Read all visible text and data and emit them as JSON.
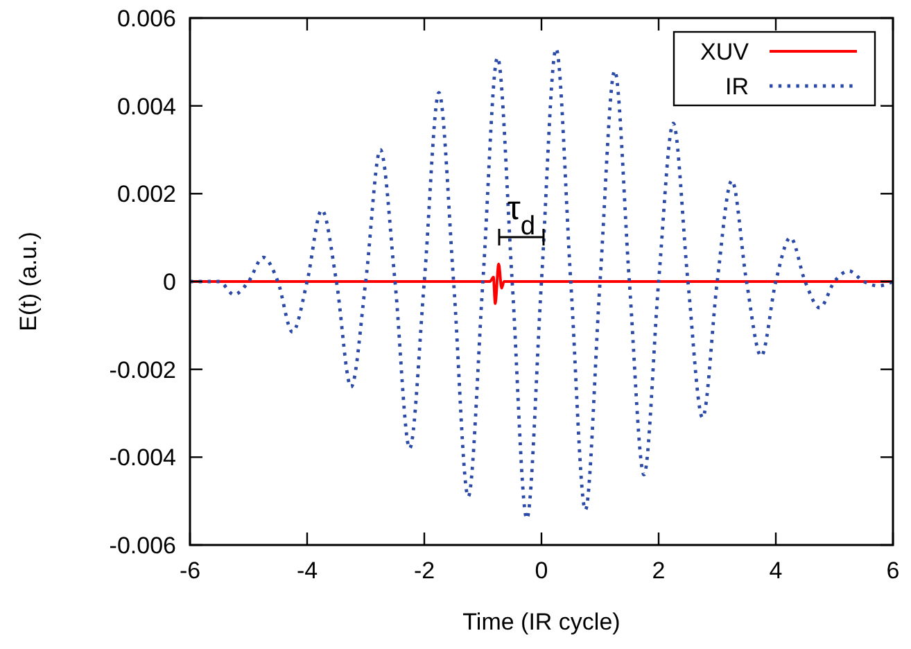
{
  "chart_data": {
    "type": "line",
    "xlabel": "Time (IR cycle)",
    "ylabel": "E(t) (a.u.)",
    "xlim": [
      -6,
      6
    ],
    "ylim": [
      -0.006,
      0.006
    ],
    "xticks": [
      -6,
      -4,
      -2,
      0,
      2,
      4,
      6
    ],
    "yticks": [
      -0.006,
      -0.004,
      -0.002,
      0,
      0.002,
      0.004,
      0.006
    ],
    "grid": false,
    "legend": "top right",
    "marker": "none",
    "annotations": [
      "τ$_{d}$"
    ],
    "series": [
      {
        "name": "XUV",
        "color": "#ff0000",
        "line_style": "solid",
        "x": [
          -6,
          -0.88,
          -0.82,
          -0.79,
          -0.73,
          -0.68,
          -0.64,
          6
        ],
        "values": [
          0,
          0,
          0.0001,
          -0.0005,
          0.0004,
          -0.00015,
          0,
          0
        ]
      },
      {
        "name": "IR",
        "color": "#2b4aa8",
        "line_style": "dotted",
        "x": [
          -6,
          -5.75,
          -5.5,
          -5.25,
          -5,
          -4.75,
          -4.5,
          -4.25,
          -4,
          -3.75,
          -3.5,
          -3.25,
          -3,
          -2.75,
          -2.5,
          -2.25,
          -2,
          -1.75,
          -1.5,
          -1.25,
          -1,
          -0.75,
          -0.5,
          -0.25,
          0,
          0.25,
          0.5,
          0.75,
          1,
          1.25,
          1.5,
          1.75,
          2,
          2.25,
          2.5,
          2.75,
          3,
          3.25,
          3.5,
          3.75,
          4,
          4.25,
          4.5,
          4.75,
          5,
          5.25,
          5.5,
          5.75,
          6
        ],
        "values": [
          0,
          0,
          0,
          -0.0003,
          0,
          0.00055,
          0,
          -0.00115,
          0,
          0.00163,
          0,
          -0.0024,
          0,
          0.003,
          0,
          -0.0038,
          0,
          0.0043,
          0,
          -0.0049,
          0,
          0.0051,
          0,
          -0.0054,
          0,
          0.0053,
          0,
          -0.0052,
          0,
          0.0048,
          0,
          -0.0044,
          0,
          0.0036,
          0,
          -0.0031,
          0,
          0.0023,
          0,
          -0.0017,
          0,
          0.001,
          0,
          -0.0006,
          0,
          0.00024,
          0,
          -0.0001,
          0
        ]
      }
    ]
  }
}
